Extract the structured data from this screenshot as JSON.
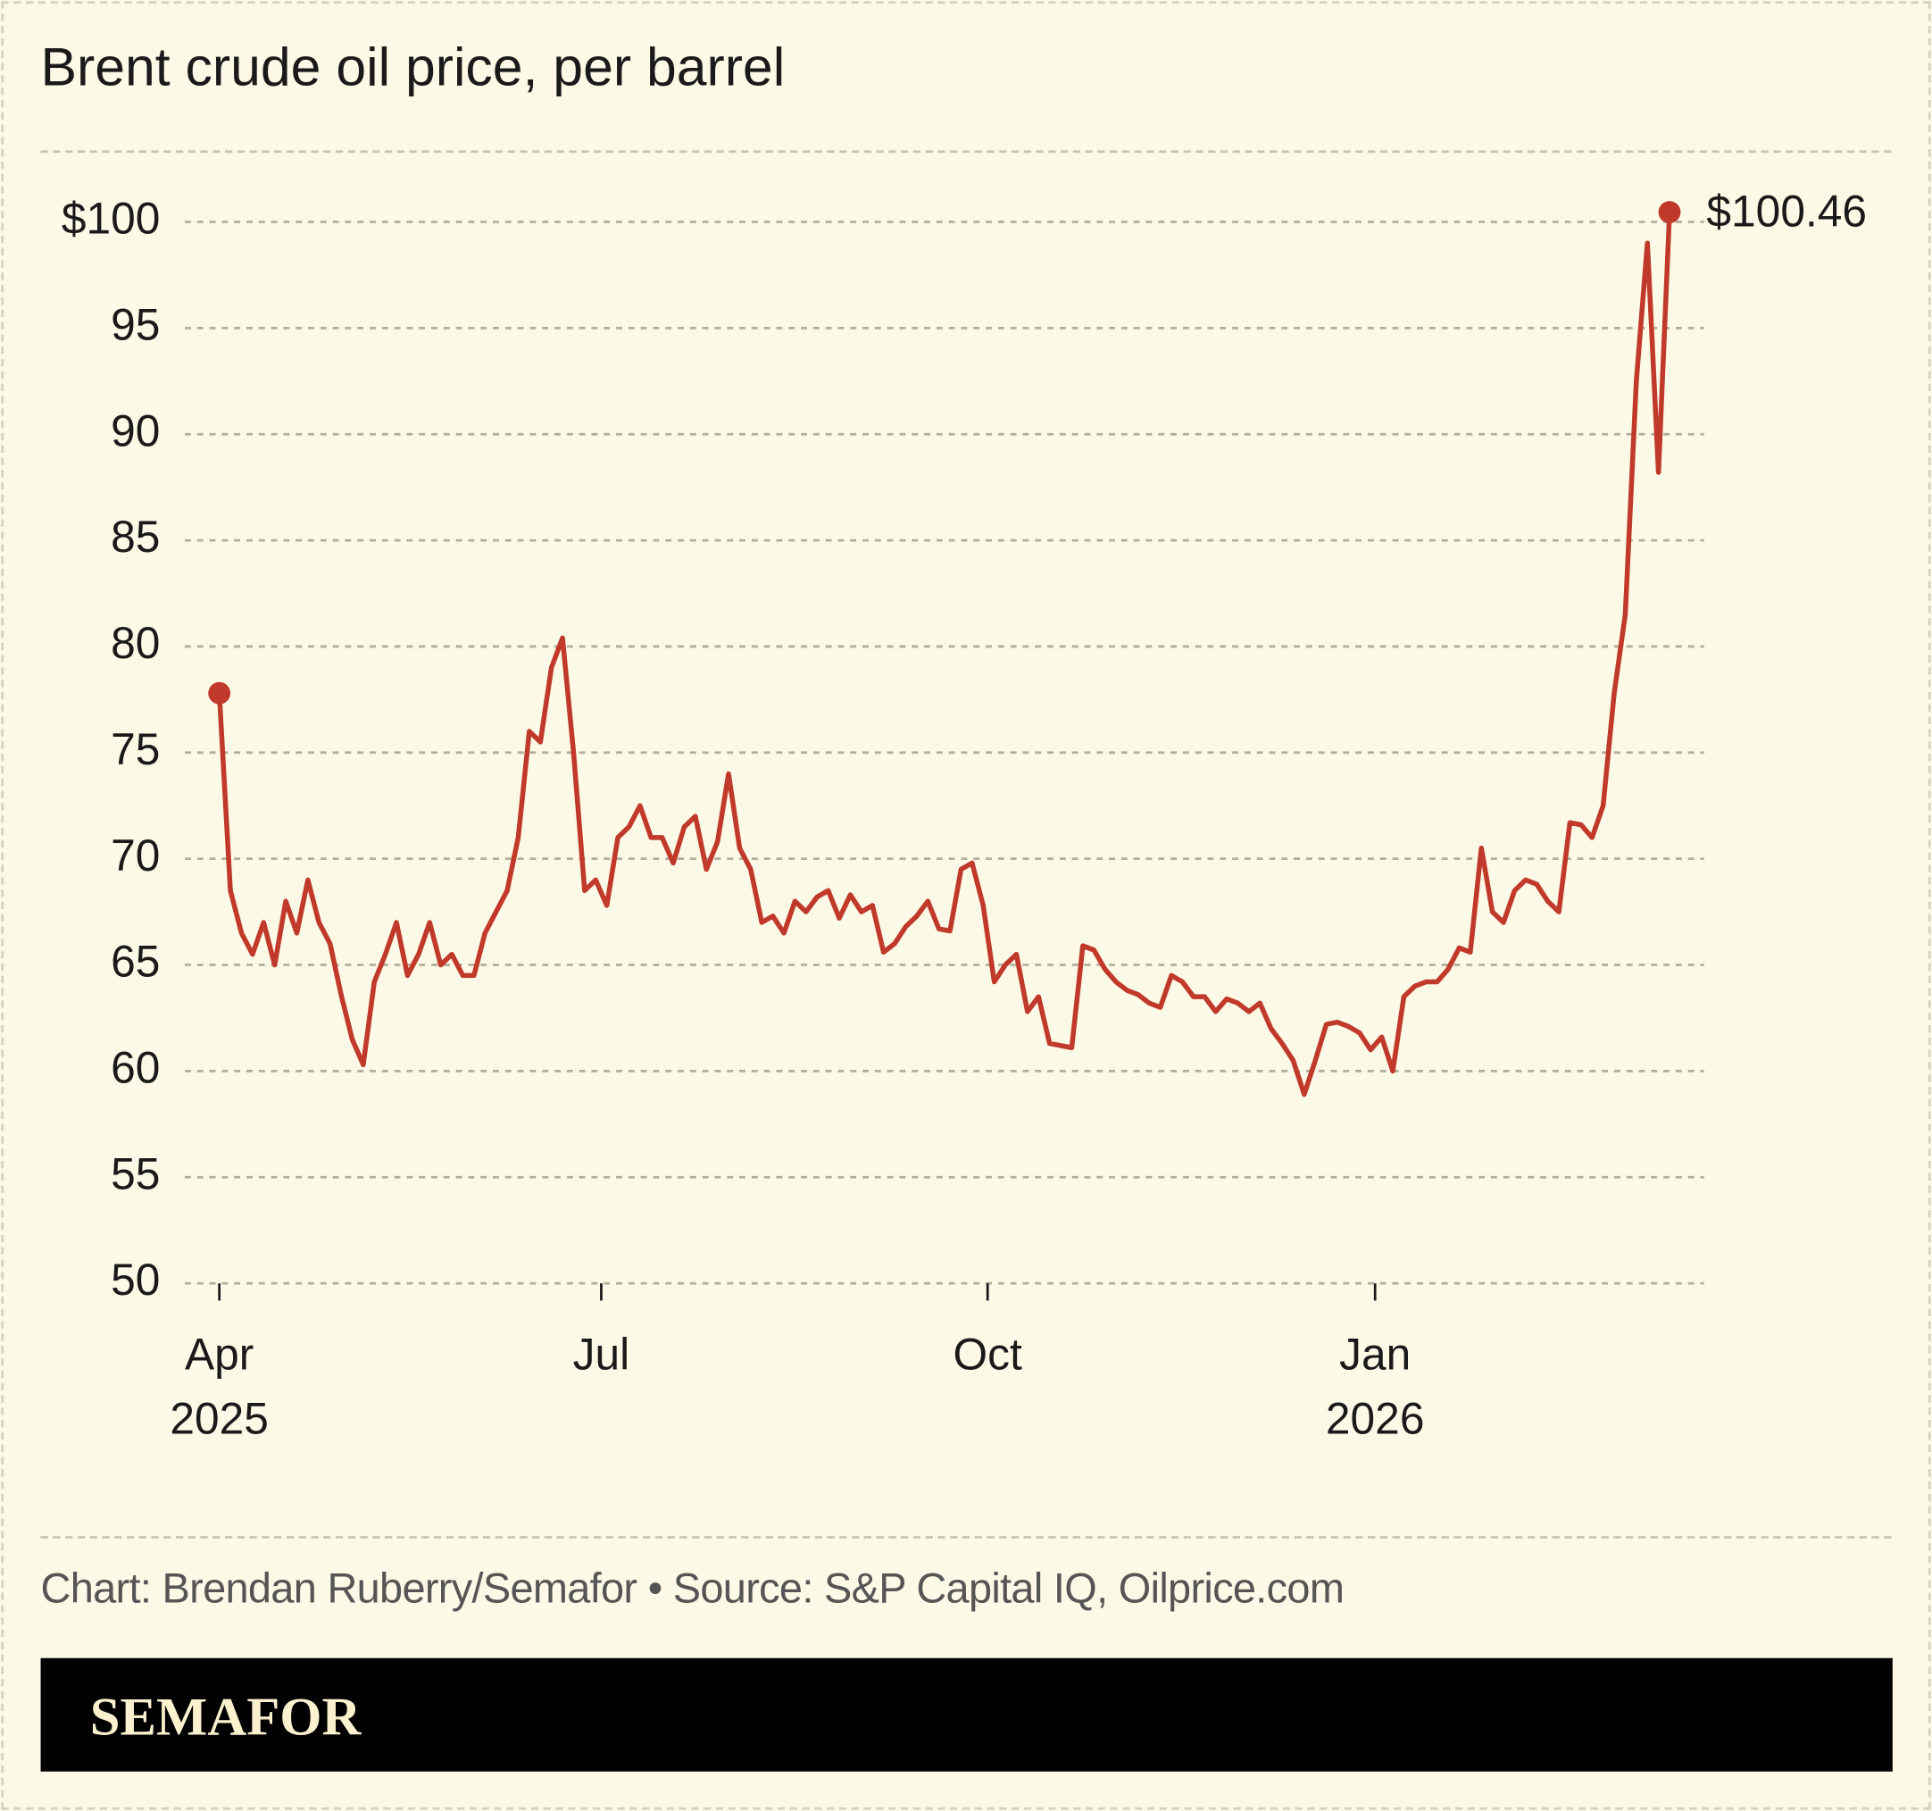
{
  "chart_data": {
    "type": "line",
    "title": "Brent crude oil price, per barrel",
    "source": "Chart: Brendan Ruberry/Semafor • Source: S&P Capital IQ, Oilprice.com",
    "brand": "SEMAFOR",
    "color": "#c0392b",
    "grid": true,
    "ylim": [
      50,
      100.46
    ],
    "yticks": [
      {
        "value": 100,
        "label": "$100"
      },
      95,
      90,
      85,
      80,
      75,
      70,
      65,
      60,
      55,
      50
    ],
    "xlim": [
      0,
      131
    ],
    "xticks": [
      {
        "value": 0,
        "label": "Apr\n2025"
      },
      {
        "value": 34.5,
        "label": "Jul"
      },
      {
        "value": 69.4,
        "label": "Oct"
      },
      {
        "value": 104.4,
        "label": "Jan\n2026"
      }
    ],
    "values": [
      77.8,
      68.5,
      66.5,
      65.5,
      67,
      65,
      68,
      66.5,
      69,
      67,
      66,
      63.6,
      61.5,
      60.3,
      64.2,
      65.5,
      67,
      64.5,
      65.5,
      67,
      65,
      65.5,
      64.5,
      64.5,
      66.5,
      67.5,
      68.5,
      71,
      76,
      75.5,
      79,
      80.4,
      75,
      68.5,
      69,
      67.8,
      71,
      71.5,
      72.5,
      71,
      71,
      69.8,
      71.5,
      72,
      69.5,
      70.8,
      74,
      70.5,
      69.5,
      67,
      67.3,
      66.5,
      68,
      67.5,
      68.2,
      68.5,
      67.2,
      68.3,
      67.5,
      67.8,
      65.6,
      66,
      66.8,
      67.3,
      68,
      66.7,
      66.6,
      69.5,
      69.8,
      67.8,
      64.2,
      65,
      65.5,
      62.8,
      63.5,
      61.3,
      61.2,
      61.1,
      65.9,
      65.7,
      64.8,
      64.2,
      63.8,
      63.6,
      63.2,
      63,
      64.5,
      64.2,
      63.5,
      63.5,
      62.8,
      63.4,
      63.2,
      62.8,
      63.2,
      62,
      61.3,
      60.5,
      58.9,
      60.5,
      62.2,
      62.3,
      62.1,
      61.8,
      61,
      61.6,
      60,
      63.5,
      64,
      64.2,
      64.2,
      64.8,
      65.8,
      65.6,
      70.5,
      67.5,
      67,
      68.5,
      69,
      68.8,
      68,
      67.5,
      71.7,
      71.6,
      71,
      72.5,
      77.8,
      81.5,
      92.5,
      99,
      88.2,
      100.46
    ],
    "value_labels": [
      null,
      null,
      null,
      null,
      null,
      null,
      null,
      null,
      null,
      null,
      null,
      null,
      null,
      null,
      null,
      null,
      null,
      null,
      null,
      null,
      null,
      null,
      null,
      null,
      null,
      null,
      null,
      null,
      null,
      null,
      null,
      null,
      null,
      null,
      null,
      null,
      null,
      null,
      null,
      null,
      null,
      null,
      null,
      null,
      null,
      null,
      null,
      null,
      null,
      null,
      null,
      null,
      null,
      null,
      null,
      null,
      null,
      null,
      null,
      null,
      null,
      null,
      null,
      null,
      null,
      null,
      null,
      null,
      null,
      null,
      null,
      null,
      null,
      null,
      null,
      null,
      null,
      null,
      null,
      null,
      null,
      null,
      null,
      null,
      null,
      null,
      null,
      null,
      null,
      null,
      null,
      null,
      null,
      null,
      null,
      null,
      null,
      null,
      null,
      null,
      null,
      null,
      null,
      null,
      null,
      null,
      null,
      null,
      null,
      null,
      null,
      null,
      null,
      null,
      null,
      null,
      null,
      null,
      null,
      null,
      null,
      null,
      null,
      null,
      null,
      null,
      null,
      null,
      null,
      null,
      null,
      "$100.46"
    ]
  }
}
